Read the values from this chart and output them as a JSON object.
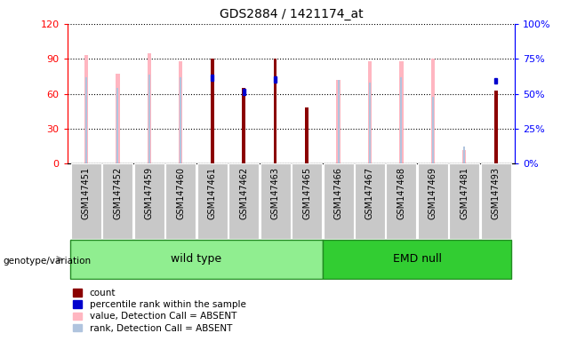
{
  "title": "GDS2884 / 1421174_at",
  "categories": [
    "GSM147451",
    "GSM147452",
    "GSM147459",
    "GSM147460",
    "GSM147461",
    "GSM147462",
    "GSM147463",
    "GSM147465",
    "GSM147466",
    "GSM147467",
    "GSM147468",
    "GSM147469",
    "GSM147481",
    "GSM147493"
  ],
  "count_values": [
    null,
    null,
    null,
    null,
    90,
    65,
    90,
    48,
    null,
    null,
    null,
    null,
    null,
    63
  ],
  "percentile_rank_values": [
    null,
    null,
    null,
    null,
    62,
    52,
    61,
    null,
    null,
    null,
    null,
    null,
    null,
    60
  ],
  "absent_value_values": [
    93,
    77,
    95,
    88,
    null,
    null,
    null,
    null,
    72,
    88,
    88,
    90,
    12,
    null
  ],
  "absent_rank_values": [
    62,
    54,
    64,
    62,
    null,
    null,
    null,
    null,
    60,
    58,
    62,
    48,
    12,
    null
  ],
  "wild_type_indices": [
    0,
    1,
    2,
    3,
    4,
    5,
    6,
    7
  ],
  "emd_null_indices": [
    8,
    9,
    10,
    11,
    12,
    13
  ],
  "ylim_left": [
    0,
    120
  ],
  "ylim_right": [
    0,
    100
  ],
  "yticks_left": [
    0,
    30,
    60,
    90,
    120
  ],
  "yticks_right": [
    0,
    25,
    50,
    75,
    100
  ],
  "ytick_labels_left": [
    "0",
    "30",
    "60",
    "90",
    "120"
  ],
  "ytick_labels_right": [
    "0%",
    "25%",
    "50%",
    "75%",
    "100%"
  ],
  "color_count": "#8B0000",
  "color_rank": "#0000CD",
  "color_absent_value": "#FFB6C1",
  "color_absent_rank": "#B0C4DE",
  "color_wild_type_bg": "#90EE90",
  "color_emd_null_bg": "#32CD32",
  "color_xticklabel_bg": "#C8C8C8",
  "legend_labels": [
    "count",
    "percentile rank within the sample",
    "value, Detection Call = ABSENT",
    "rank, Detection Call = ABSENT"
  ]
}
